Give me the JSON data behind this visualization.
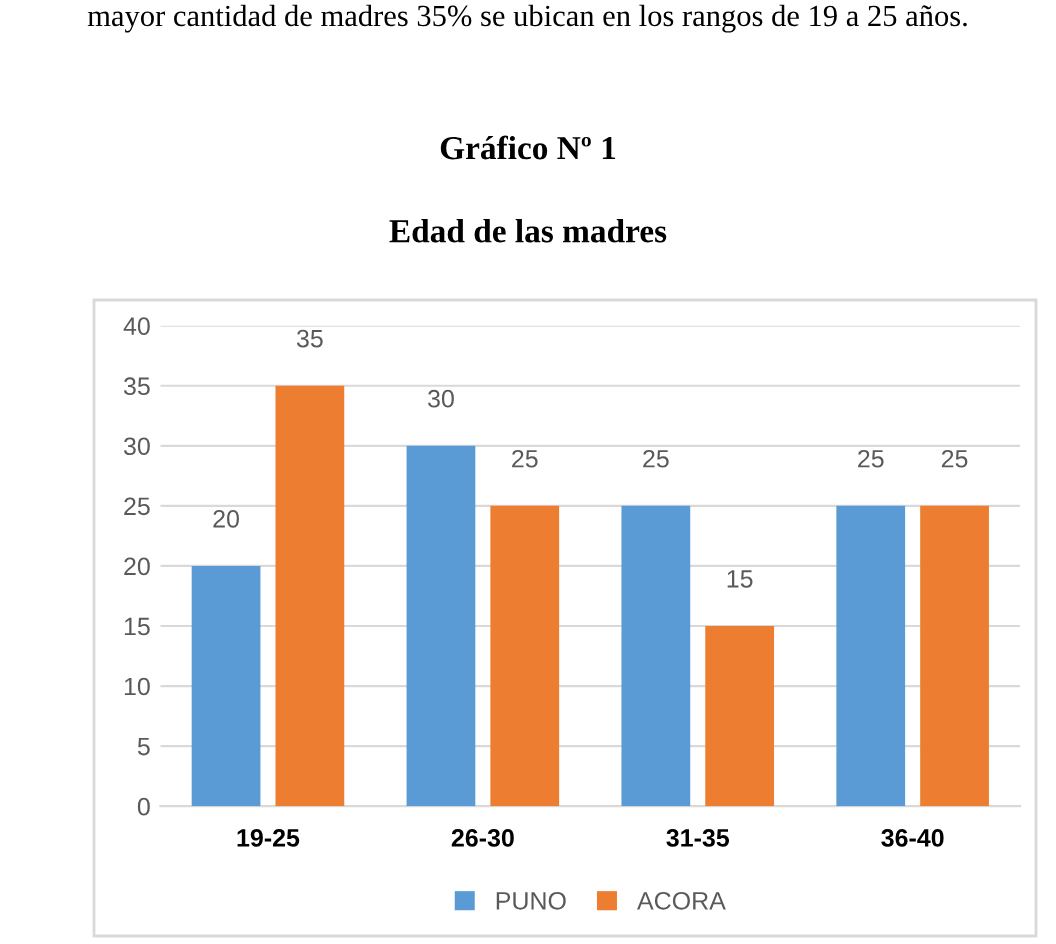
{
  "chart_data": {
    "type": "bar",
    "title": "Gráfico Nº 1",
    "subtitle": "Edad de las madres",
    "annotations": [
      "mayor cantidad de madres 35% se ubican en los rangos de 19 a 25 años."
    ],
    "categories": [
      "19-25",
      "26-30",
      "31-35",
      "36-40"
    ],
    "series": [
      {
        "name": "PUNO",
        "color": "#5b9bd5",
        "values": [
          20,
          30,
          25,
          25
        ]
      },
      {
        "name": "ACORA",
        "color": "#ed7d31",
        "values": [
          35,
          25,
          15,
          25
        ]
      }
    ],
    "ylim": [
      0,
      40
    ],
    "yticks": [
      0,
      5,
      10,
      15,
      20,
      25,
      30,
      35,
      40
    ],
    "grid": "y",
    "legend": "bottom",
    "data_labels": true
  }
}
